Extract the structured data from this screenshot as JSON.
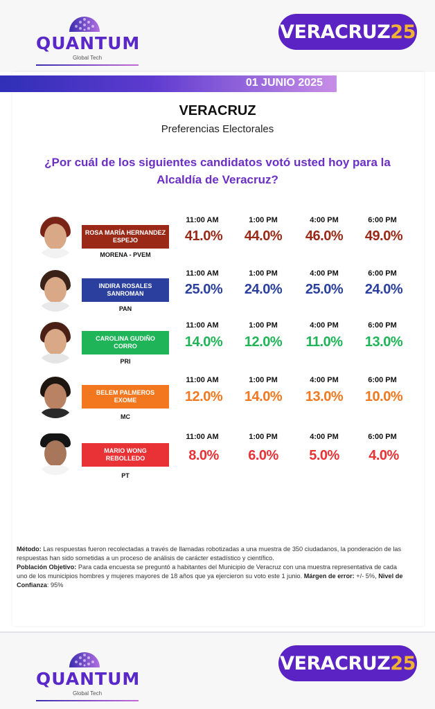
{
  "brand": {
    "logo_text": "QUANTUM",
    "logo_sub": "Global Tech",
    "badge_main": "VERACRUZ",
    "badge_year": "25"
  },
  "date": "01 JUNIO 2025",
  "title": "VERACRUZ",
  "subtitle": "Preferencias Electorales",
  "question_line1": "¿Por cuál de los siguientes candidatos votó usted hoy para la",
  "question_line2": "Alcaldía de Veracruz?",
  "times": [
    "11:00 AM",
    "1:00 PM",
    "4:00 PM",
    "6:00 PM"
  ],
  "candidates": [
    {
      "name": "ROSA MARÍA HERNANDEZ ESPEJO",
      "party": "MORENA  -  PVEM",
      "color": "#9a2a17",
      "values": [
        "41.0%",
        "44.0%",
        "46.0%",
        "49.0%"
      ],
      "value_color": "#9a2a17"
    },
    {
      "name": "INDIRA ROSALES SANROMAN",
      "party": "PAN",
      "color": "#2a3f9e",
      "values": [
        "25.0%",
        "24.0%",
        "25.0%",
        "24.0%"
      ],
      "value_color": "#2a3f9e"
    },
    {
      "name": "CAROLINA GUDIÑO CORRO",
      "party": "PRI",
      "color": "#1fb457",
      "values": [
        "14.0%",
        "12.0%",
        "11.0%",
        "13.0%"
      ],
      "value_color": "#1fb457"
    },
    {
      "name": "BELEM PALMEROS EXOME",
      "party": "MC",
      "color": "#f2771e",
      "values": [
        "12.0%",
        "14.0%",
        "13.0%",
        "10.0%"
      ],
      "value_color": "#f2771e"
    },
    {
      "name": "MARIO WONG REBOLLEDO",
      "party": "PT",
      "color": "#e83236",
      "values": [
        "8.0%",
        "6.0%",
        "5.0%",
        "4.0%"
      ],
      "value_color": "#e83236"
    }
  ],
  "methodology": {
    "method_label": "Método:",
    "method_text": " Las respuestas fueron recolectadas a través de llamadas robotizadas a una muestra de 350 ciudadanos, la ponderación de las respuestas han sido sometidas a un proceso de análisis de carácter estadístico y científico.",
    "population_label": "Población Objetivo:",
    "population_text": " Para cada encuesta se preguntó a habitantes del Municipio de Veracruz con una muestra representativa de cada uno de los municipios hombres y mujeres mayores de 18 años que ya ejercieron su voto este 1 junio.",
    "margin_label": "Márgen de error:",
    "margin_text": " +/- 5%,",
    "confidence_label": "Nivel de Confianza",
    "confidence_text": ": 95%"
  }
}
